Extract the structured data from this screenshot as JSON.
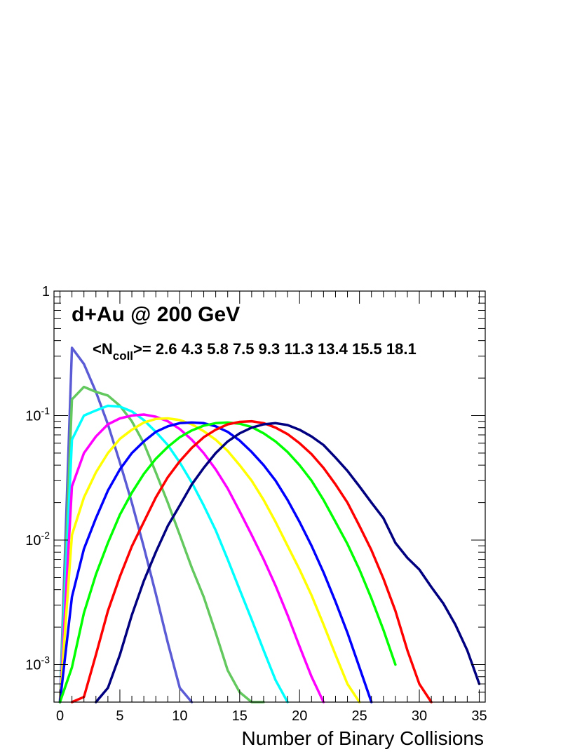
{
  "chart_data": {
    "type": "line",
    "title": "d+Au @ 200 GeV",
    "annotation": {
      "prefix": "<N",
      "subscript": "coll",
      "suffix": ">= 2.6 4.3 5.8 7.5 9.3 11.3 13.4 15.5 18.1"
    },
    "xlabel": "Number of Binary Collisions",
    "ylabel": "",
    "xlim": [
      -0.5,
      35.5
    ],
    "ylim": [
      0.0005,
      1
    ],
    "yscale": "log",
    "grid": false,
    "legend": "none",
    "x_ticks": [
      0,
      5,
      10,
      15,
      20,
      25,
      30,
      35
    ],
    "x_tick_labels": [
      "0",
      "5",
      "10",
      "15",
      "20",
      "25",
      "30",
      "35"
    ],
    "y_ticks": [
      {
        "value": 0.001,
        "base": "10",
        "exp": "-3"
      },
      {
        "value": 0.01,
        "base": "10",
        "exp": "-2"
      },
      {
        "value": 0.1,
        "base": "10",
        "exp": "-1"
      },
      {
        "value": 1,
        "label": "1"
      }
    ],
    "series": [
      {
        "color": "#5b5bd6",
        "mean": 2.6,
        "points": [
          [
            0,
            0.0005
          ],
          [
            1,
            0.35
          ],
          [
            2,
            0.26
          ],
          [
            3,
            0.155
          ],
          [
            4,
            0.085
          ],
          [
            5,
            0.042
          ],
          [
            6,
            0.02
          ],
          [
            7,
            0.0088
          ],
          [
            8,
            0.0037
          ],
          [
            9,
            0.0015
          ],
          [
            10,
            0.00065
          ],
          [
            11,
            0.00025
          ]
        ]
      },
      {
        "color": "#63c95f",
        "mean": 4.3,
        "points": [
          [
            0,
            0.0005
          ],
          [
            1,
            0.135
          ],
          [
            2,
            0.17
          ],
          [
            3,
            0.155
          ],
          [
            4,
            0.145
          ],
          [
            5,
            0.12
          ],
          [
            6,
            0.09
          ],
          [
            7,
            0.06
          ],
          [
            8,
            0.035
          ],
          [
            9,
            0.02
          ],
          [
            10,
            0.011
          ],
          [
            11,
            0.006
          ],
          [
            12,
            0.0035
          ],
          [
            13,
            0.0018
          ],
          [
            14,
            0.0009
          ],
          [
            15,
            0.0006
          ],
          [
            16,
            0.0005
          ],
          [
            17,
            0.0004
          ]
        ]
      },
      {
        "color": "#00ffff",
        "mean": 5.8,
        "points": [
          [
            0,
            0.0005
          ],
          [
            1,
            0.064
          ],
          [
            2,
            0.1
          ],
          [
            3,
            0.11
          ],
          [
            4,
            0.12
          ],
          [
            5,
            0.118
          ],
          [
            6,
            0.108
          ],
          [
            7,
            0.092
          ],
          [
            8,
            0.074
          ],
          [
            9,
            0.058
          ],
          [
            10,
            0.042
          ],
          [
            11,
            0.029
          ],
          [
            12,
            0.019
          ],
          [
            13,
            0.012
          ],
          [
            14,
            0.007
          ],
          [
            15,
            0.004
          ],
          [
            16,
            0.0023
          ],
          [
            17,
            0.0013
          ],
          [
            18,
            0.00075
          ],
          [
            19,
            0.0005
          ]
        ]
      },
      {
        "color": "#ff00ff",
        "mean": 7.5,
        "points": [
          [
            0,
            0.0005
          ],
          [
            1,
            0.027
          ],
          [
            2,
            0.05
          ],
          [
            3,
            0.068
          ],
          [
            4,
            0.085
          ],
          [
            5,
            0.095
          ],
          [
            6,
            0.1
          ],
          [
            7,
            0.102
          ],
          [
            8,
            0.098
          ],
          [
            9,
            0.09
          ],
          [
            10,
            0.078
          ],
          [
            11,
            0.064
          ],
          [
            12,
            0.05
          ],
          [
            13,
            0.037
          ],
          [
            14,
            0.026
          ],
          [
            15,
            0.017
          ],
          [
            16,
            0.011
          ],
          [
            17,
            0.007
          ],
          [
            18,
            0.0043
          ],
          [
            19,
            0.0025
          ],
          [
            20,
            0.0014
          ],
          [
            21,
            0.0008
          ],
          [
            22,
            0.0005
          ]
        ]
      },
      {
        "color": "#ffff00",
        "mean": 9.3,
        "points": [
          [
            0,
            0.0005
          ],
          [
            1,
            0.011
          ],
          [
            2,
            0.022
          ],
          [
            3,
            0.035
          ],
          [
            4,
            0.05
          ],
          [
            5,
            0.065
          ],
          [
            6,
            0.077
          ],
          [
            7,
            0.088
          ],
          [
            8,
            0.094
          ],
          [
            9,
            0.095
          ],
          [
            10,
            0.092
          ],
          [
            11,
            0.085
          ],
          [
            12,
            0.075
          ],
          [
            13,
            0.064
          ],
          [
            14,
            0.052
          ],
          [
            15,
            0.04
          ],
          [
            16,
            0.03
          ],
          [
            17,
            0.021
          ],
          [
            18,
            0.014
          ],
          [
            19,
            0.009
          ],
          [
            20,
            0.0058
          ],
          [
            21,
            0.0036
          ],
          [
            22,
            0.0021
          ],
          [
            23,
            0.0012
          ],
          [
            24,
            0.0007
          ],
          [
            25,
            0.0004
          ]
        ]
      },
      {
        "color": "#0000ff",
        "mean": 11.3,
        "points": [
          [
            0,
            0.0005
          ],
          [
            1,
            0.0035
          ],
          [
            2,
            0.0085
          ],
          [
            3,
            0.015
          ],
          [
            4,
            0.025
          ],
          [
            5,
            0.037
          ],
          [
            6,
            0.05
          ],
          [
            7,
            0.062
          ],
          [
            8,
            0.074
          ],
          [
            9,
            0.082
          ],
          [
            10,
            0.087
          ],
          [
            11,
            0.088
          ],
          [
            12,
            0.087
          ],
          [
            13,
            0.082
          ],
          [
            14,
            0.074
          ],
          [
            15,
            0.063
          ],
          [
            16,
            0.051
          ],
          [
            17,
            0.04
          ],
          [
            18,
            0.03
          ],
          [
            19,
            0.021
          ],
          [
            20,
            0.014
          ],
          [
            21,
            0.009
          ],
          [
            22,
            0.0055
          ],
          [
            23,
            0.0032
          ],
          [
            24,
            0.0018
          ],
          [
            25,
            0.00095
          ],
          [
            26,
            0.0005
          ]
        ]
      },
      {
        "color": "#00ff00",
        "mean": 13.4,
        "points": [
          [
            0,
            0.0005
          ],
          [
            1,
            0.00095
          ],
          [
            2,
            0.0026
          ],
          [
            3,
            0.0053
          ],
          [
            4,
            0.0095
          ],
          [
            5,
            0.016
          ],
          [
            6,
            0.024
          ],
          [
            7,
            0.034
          ],
          [
            8,
            0.045
          ],
          [
            9,
            0.056
          ],
          [
            10,
            0.067
          ],
          [
            11,
            0.076
          ],
          [
            12,
            0.083
          ],
          [
            13,
            0.087
          ],
          [
            14,
            0.088
          ],
          [
            15,
            0.086
          ],
          [
            16,
            0.081
          ],
          [
            17,
            0.072
          ],
          [
            18,
            0.062
          ],
          [
            19,
            0.051
          ],
          [
            20,
            0.04
          ],
          [
            21,
            0.03
          ],
          [
            22,
            0.021
          ],
          [
            23,
            0.014
          ],
          [
            24,
            0.0093
          ],
          [
            25,
            0.0058
          ],
          [
            26,
            0.0034
          ],
          [
            27,
            0.0019
          ],
          [
            28,
            0.001
          ]
        ]
      },
      {
        "color": "#ff0000",
        "mean": 15.5,
        "points": [
          [
            1,
            0.00045
          ],
          [
            2,
            0.00055
          ],
          [
            3,
            0.0012
          ],
          [
            4,
            0.0027
          ],
          [
            5,
            0.0051
          ],
          [
            6,
            0.0089
          ],
          [
            7,
            0.014
          ],
          [
            8,
            0.022
          ],
          [
            9,
            0.032
          ],
          [
            10,
            0.043
          ],
          [
            11,
            0.055
          ],
          [
            12,
            0.067
          ],
          [
            13,
            0.077
          ],
          [
            14,
            0.085
          ],
          [
            15,
            0.089
          ],
          [
            16,
            0.09
          ],
          [
            17,
            0.087
          ],
          [
            18,
            0.08
          ],
          [
            19,
            0.071
          ],
          [
            20,
            0.06
          ],
          [
            21,
            0.049
          ],
          [
            22,
            0.038
          ],
          [
            23,
            0.028
          ],
          [
            24,
            0.02
          ],
          [
            25,
            0.013
          ],
          [
            26,
            0.0083
          ],
          [
            27,
            0.0049
          ],
          [
            28,
            0.0027
          ],
          [
            29,
            0.0013
          ],
          [
            30,
            0.0007
          ],
          [
            31,
            0.0004
          ]
        ]
      },
      {
        "color": "#000080",
        "mean": 18.1,
        "points": [
          [
            3,
            0.0004
          ],
          [
            4,
            0.00065
          ],
          [
            5,
            0.0012
          ],
          [
            6,
            0.0025
          ],
          [
            7,
            0.0047
          ],
          [
            8,
            0.008
          ],
          [
            9,
            0.013
          ],
          [
            10,
            0.019
          ],
          [
            11,
            0.028
          ],
          [
            12,
            0.038
          ],
          [
            13,
            0.05
          ],
          [
            14,
            0.062
          ],
          [
            15,
            0.072
          ],
          [
            16,
            0.08
          ],
          [
            17,
            0.085
          ],
          [
            18,
            0.087
          ],
          [
            19,
            0.084
          ],
          [
            20,
            0.077
          ],
          [
            21,
            0.068
          ],
          [
            22,
            0.058
          ],
          [
            23,
            0.046
          ],
          [
            24,
            0.036
          ],
          [
            25,
            0.027
          ],
          [
            26,
            0.02
          ],
          [
            27,
            0.015
          ],
          [
            28,
            0.0095
          ],
          [
            29,
            0.0072
          ],
          [
            30,
            0.0058
          ],
          [
            31,
            0.0042
          ],
          [
            32,
            0.0031
          ],
          [
            33,
            0.0021
          ],
          [
            34,
            0.0013
          ],
          [
            35,
            0.0007
          ]
        ]
      }
    ]
  }
}
